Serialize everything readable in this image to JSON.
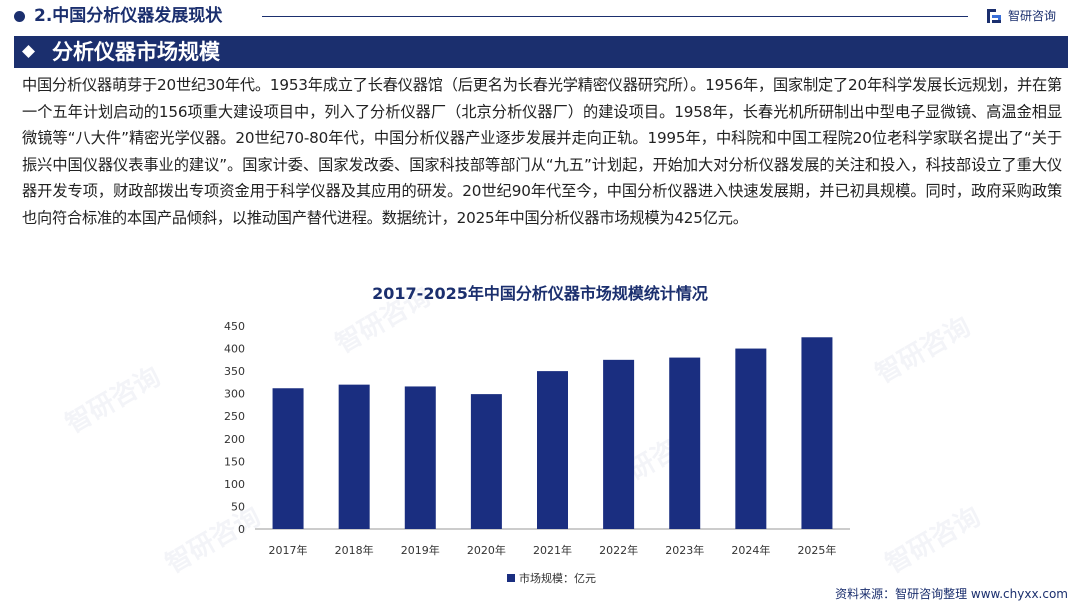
{
  "header": {
    "section_title": "2.中国分析仪器发展现状",
    "brand_name": "智研咨询"
  },
  "section": {
    "heading": "分析仪器市场规模"
  },
  "intro_text": "中国分析仪器萌芽于20世纪30年代。1953年成立了长春仪器馆（后更名为长春光学精密仪器研究所）。1956年，国家制定了20年科学发展长远规划，并在第一个五年计划启动的156项重大建设项目中，列入了分析仪器厂（北京分析仪器厂）的建设项目。1958年，长春光机所研制出中型电子显微镜、高温金相显微镜等“八大件”精密光学仪器。20世纪70-80年代，中国分析仪器产业逐步发展并走向正轨。1995年，中科院和中国工程院20位老科学家联名提出了“关于振兴中国仪器仪表事业的建议”。国家计委、国家发改委、国家科技部等部门从“九五”计划起，开始加大对分析仪器发展的关注和投入，科技部设立了重大仪器开发专项，财政部拨出专项资金用于科学仪器及其应用的研发。20世纪90年代至今，中国分析仪器进入快速发展期，并已初具规模。同时，政府采购政策也向符合标准的本国产品倾斜，以推动国产替代进程。数据统计，2025年中国分析仪器市场规模为425亿元。",
  "chart_data": {
    "type": "bar",
    "title": "2017-2025年中国分析仪器市场规模统计情况",
    "categories": [
      "2017年",
      "2018年",
      "2019年",
      "2020年",
      "2021年",
      "2022年",
      "2023年",
      "2024年",
      "2025年"
    ],
    "series": [
      {
        "name": "市场规模：亿元",
        "values": [
          312,
          320,
          316,
          299,
          350,
          375,
          380,
          400,
          425
        ]
      }
    ],
    "ylim": [
      0,
      450
    ],
    "yticks": [
      0,
      50,
      100,
      150,
      200,
      250,
      300,
      350,
      400,
      450
    ],
    "grid": false,
    "legend_position": "bottom-center",
    "bar_color": "#1a2e80"
  },
  "footer": {
    "source": "资料来源：智研咨询整理 www.chyxx.com"
  },
  "colors": {
    "primary": "#1b2f6e",
    "bar": "#1a2e80",
    "text": "#222222",
    "axis": "#999999"
  },
  "watermark_text": "智研咨询"
}
